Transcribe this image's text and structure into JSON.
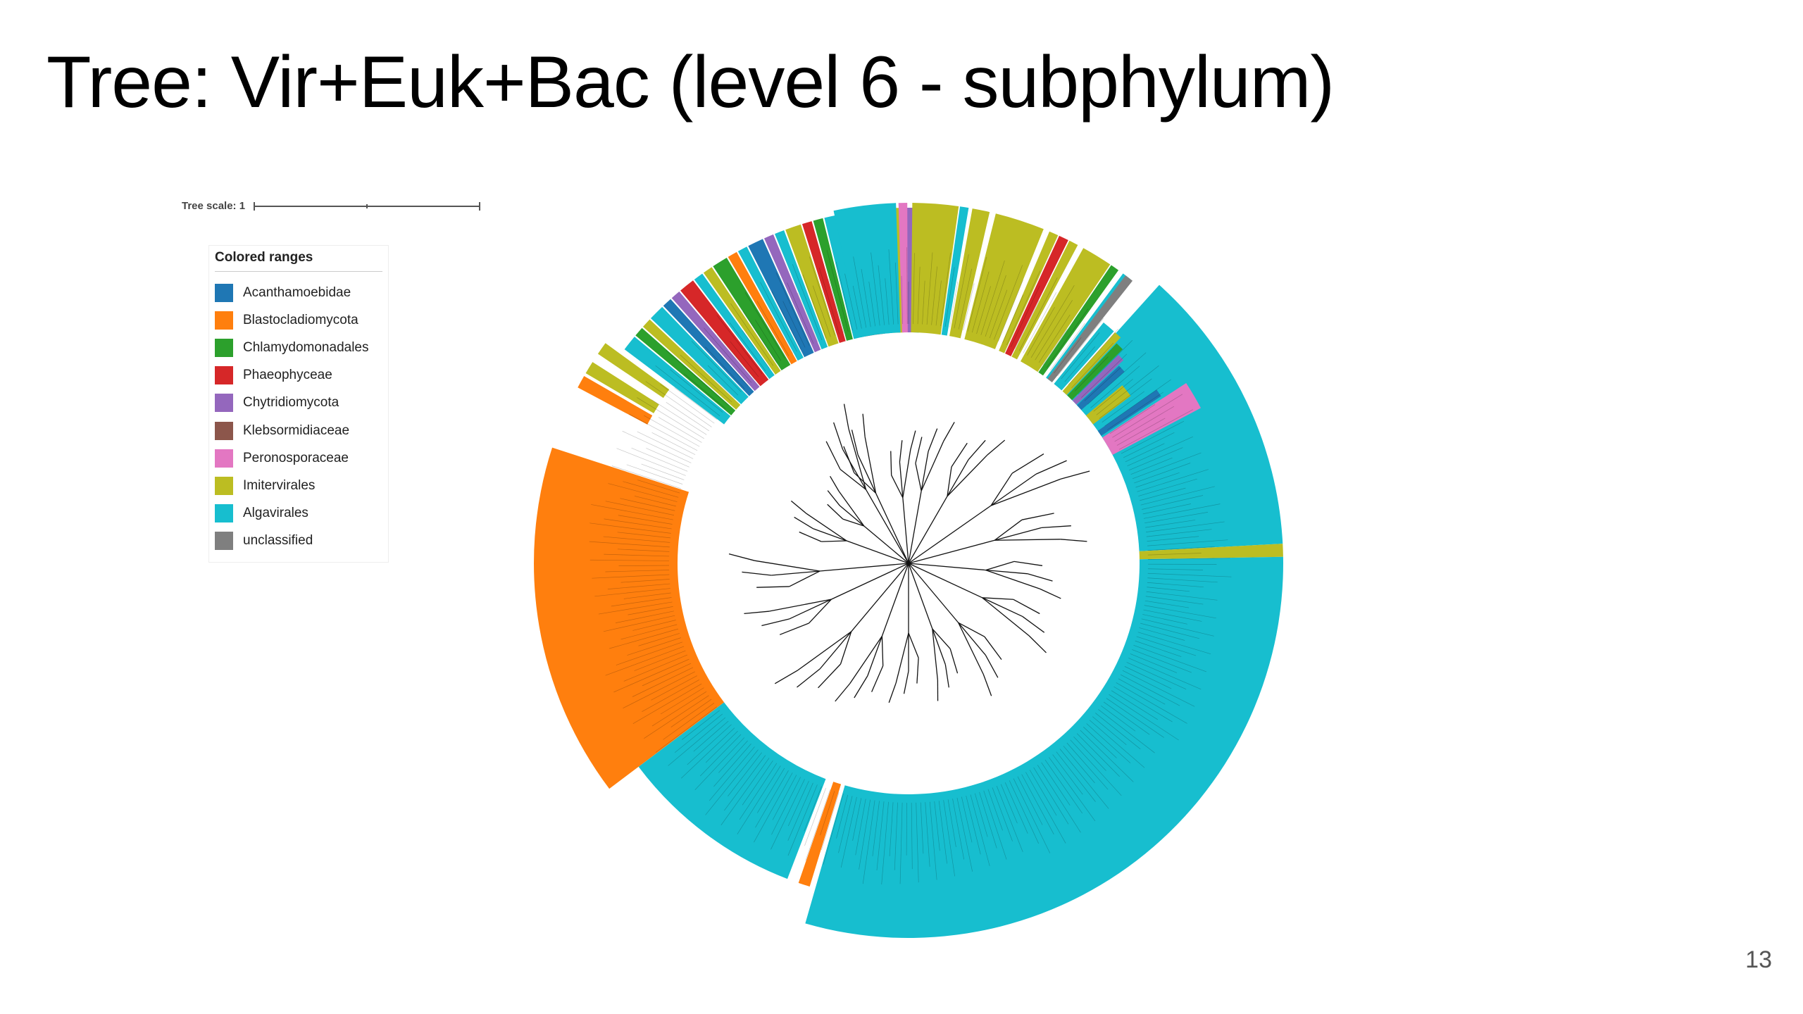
{
  "slide": {
    "title": "Tree: Vir+Euk+Bac (level 6 - subphylum)",
    "page_number": "13"
  },
  "tree_scale": {
    "label": "Tree scale: 1"
  },
  "legend": {
    "title": "Colored ranges",
    "items": [
      {
        "label": "Acanthamoebidae",
        "color": "#1f77b4"
      },
      {
        "label": "Blastocladiomycota",
        "color": "#ff7f0e"
      },
      {
        "label": "Chlamydomonadales",
        "color": "#2ca02c"
      },
      {
        "label": "Phaeophyceae",
        "color": "#d62728"
      },
      {
        "label": "Chytridiomycota",
        "color": "#9467bd"
      },
      {
        "label": "Klebsormidiaceae",
        "color": "#8c564b"
      },
      {
        "label": "Peronosporaceae",
        "color": "#e377c2"
      },
      {
        "label": "Imitervirales",
        "color": "#bcbd22"
      },
      {
        "label": "Algavirales",
        "color": "#17becf"
      },
      {
        "label": "unclassified",
        "color": "#7f7f7f"
      }
    ]
  },
  "colors": {
    "Acanthamoebidae": "#1f77b4",
    "Blastocladiomycota": "#ff7f0e",
    "Chlamydomonadales": "#2ca02c",
    "Phaeophyceae": "#d62728",
    "Chytridiomycota": "#9467bd",
    "Klebsormidiaceae": "#8c564b",
    "Peronosporaceae": "#e377c2",
    "Imitervirales": "#bcbd22",
    "Algavirales": "#17becf",
    "unclassified": "#7f7f7f"
  }
}
